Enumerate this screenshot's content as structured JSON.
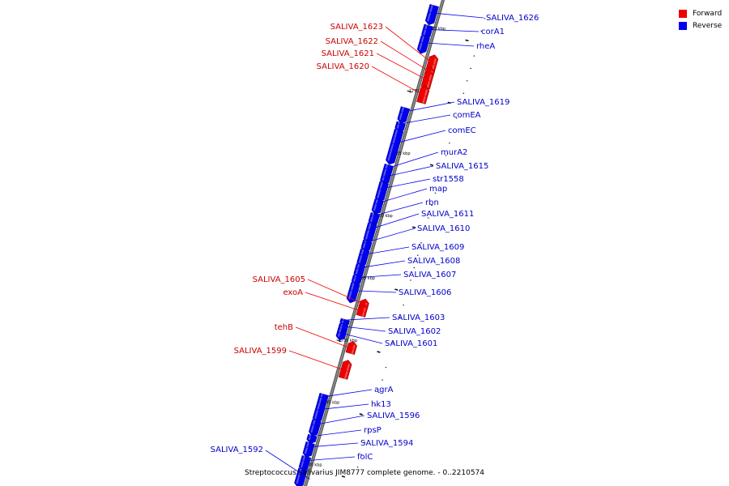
{
  "colors": {
    "forward": "#ee0000",
    "reverse": "#0000ee",
    "backbone": "#888888"
  },
  "legend": [
    {
      "label": "Forward",
      "color": "#ee0000"
    },
    {
      "label": "Reverse",
      "color": "#0000ee"
    }
  ],
  "caption": "Streptococcus salivarius JIM8777 complete genome. - 0..2210574",
  "scale": {
    "start_kbp": 1738.5,
    "end_kbp": 1777.5,
    "tick_labels": [
      "1775 kbp",
      "1770 kbp",
      "1765 kbp",
      "1760 kbp",
      "1755 kbp",
      "1750 kbp",
      "1745 kbp",
      "1740 kbp"
    ]
  },
  "genes": [
    {
      "name": "SALIVA_1626",
      "strand": "reverse",
      "start_kbp": 1775.6,
      "end_kbp": 1776.9
    },
    {
      "name": "corA1",
      "strand": "reverse",
      "start_kbp": 1774.5,
      "end_kbp": 1775.3
    },
    {
      "name": "rheA",
      "strand": "reverse",
      "start_kbp": 1773.3,
      "end_kbp": 1774.4
    },
    {
      "name": "SALIVA_1623",
      "strand": "forward",
      "start_kbp": 1771.9,
      "end_kbp": 1773.0
    },
    {
      "name": "SALIVA_1622",
      "strand": "forward",
      "start_kbp": 1771.6,
      "end_kbp": 1772.0
    },
    {
      "name": "SALIVA_1621",
      "strand": "forward",
      "start_kbp": 1770.6,
      "end_kbp": 1771.7
    },
    {
      "name": "SALIVA_1620",
      "strand": "forward",
      "start_kbp": 1769.4,
      "end_kbp": 1770.5
    },
    {
      "name": "SALIVA_1619",
      "strand": "reverse",
      "start_kbp": 1767.7,
      "end_kbp": 1768.7
    },
    {
      "name": "comEA",
      "strand": "reverse",
      "start_kbp": 1767.0,
      "end_kbp": 1767.5
    },
    {
      "name": "comEC",
      "strand": "reverse",
      "start_kbp": 1764.4,
      "end_kbp": 1766.9
    },
    {
      "name": "murA2",
      "strand": "reverse",
      "start_kbp": 1763.2,
      "end_kbp": 1764.1
    },
    {
      "name": "SALIVA_1615",
      "strand": "reverse",
      "start_kbp": 1762.8,
      "end_kbp": 1763.2
    },
    {
      "name": "str1558",
      "strand": "reverse",
      "start_kbp": 1761.4,
      "end_kbp": 1762.7
    },
    {
      "name": "map",
      "strand": "reverse",
      "start_kbp": 1760.4,
      "end_kbp": 1761.3
    },
    {
      "name": "rbn",
      "strand": "reverse",
      "start_kbp": 1759.5,
      "end_kbp": 1760.2
    },
    {
      "name": "SALIVA_1611",
      "strand": "reverse",
      "start_kbp": 1758.1,
      "end_kbp": 1759.4
    },
    {
      "name": "SALIVA_1610",
      "strand": "reverse",
      "start_kbp": 1757.4,
      "end_kbp": 1758.0
    },
    {
      "name": "SALIVA_1609",
      "strand": "reverse",
      "start_kbp": 1756.2,
      "end_kbp": 1757.3
    },
    {
      "name": "SALIVA_1608",
      "strand": "reverse",
      "start_kbp": 1755.3,
      "end_kbp": 1756.1
    },
    {
      "name": "SALIVA_1607",
      "strand": "reverse",
      "start_kbp": 1754.7,
      "end_kbp": 1755.2
    },
    {
      "name": "SALIVA_1606",
      "strand": "reverse",
      "start_kbp": 1753.3,
      "end_kbp": 1754.6
    },
    {
      "name": "SALIVA_1605",
      "strand": "forward",
      "start_kbp": 1753.0,
      "end_kbp": 1753.4
    },
    {
      "name": "exoA",
      "strand": "forward",
      "start_kbp": 1752.3,
      "end_kbp": 1753.0
    },
    {
      "name": "SALIVA_1603",
      "strand": "reverse",
      "start_kbp": 1751.4,
      "end_kbp": 1751.7
    },
    {
      "name": "SALIVA_1602",
      "strand": "reverse",
      "start_kbp": 1750.9,
      "end_kbp": 1751.3
    },
    {
      "name": "SALIVA_1601",
      "strand": "reverse",
      "start_kbp": 1750.3,
      "end_kbp": 1750.9
    },
    {
      "name": "tehB",
      "strand": "forward",
      "start_kbp": 1749.3,
      "end_kbp": 1750.0
    },
    {
      "name": "SALIVA_1599",
      "strand": "forward",
      "start_kbp": 1747.3,
      "end_kbp": 1748.5
    },
    {
      "name": "agrA",
      "strand": "reverse",
      "start_kbp": 1745.0,
      "end_kbp": 1745.7
    },
    {
      "name": "hk13",
      "strand": "reverse",
      "start_kbp": 1743.7,
      "end_kbp": 1745.0
    },
    {
      "name": "SALIVA_1596",
      "strand": "reverse",
      "start_kbp": 1742.6,
      "end_kbp": 1743.6
    },
    {
      "name": "rpsP",
      "strand": "reverse",
      "start_kbp": 1742.0,
      "end_kbp": 1742.4
    },
    {
      "name": "SALIVA_1594",
      "strand": "reverse",
      "start_kbp": 1740.9,
      "end_kbp": 1741.8
    },
    {
      "name": "folC",
      "strand": "reverse",
      "start_kbp": 1739.8,
      "end_kbp": 1740.7
    },
    {
      "name": "SALIVA_1592",
      "strand": "reverse",
      "start_kbp": 1738.5,
      "end_kbp": 1739.7
    }
  ]
}
